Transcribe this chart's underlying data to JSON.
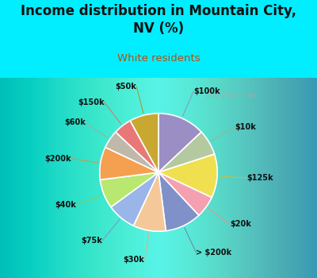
{
  "title": "Income distribution in Mountain City,\nNV (%)",
  "subtitle": "White residents",
  "title_color": "#111111",
  "subtitle_color": "#b05010",
  "bg_cyan": "#00eeff",
  "bg_chart_color": "#c8eedc",
  "watermark": "City-Data.com",
  "labels": [
    "$100k",
    "$10k",
    "$125k",
    "$20k",
    "> $200k",
    "$30k",
    "$75k",
    "$40k",
    "$200k",
    "$60k",
    "$150k",
    "$50k"
  ],
  "values": [
    13,
    7,
    12,
    6,
    10,
    9,
    8,
    8,
    9,
    5,
    5,
    8
  ],
  "colors": [
    "#9b8ec4",
    "#b5c9a0",
    "#f0e050",
    "#f4a0b0",
    "#8090c8",
    "#f5c89a",
    "#9ab5e8",
    "#b8e870",
    "#f5a050",
    "#c0b8a8",
    "#e87878",
    "#c8a830"
  ],
  "line_colors": [
    "#9090c0",
    "#90b890",
    "#c8c040",
    "#e89090",
    "#7080b0",
    "#e0b080",
    "#8090d0",
    "#90c850",
    "#e09040",
    "#b0a898",
    "#d87070",
    "#b09020"
  ]
}
